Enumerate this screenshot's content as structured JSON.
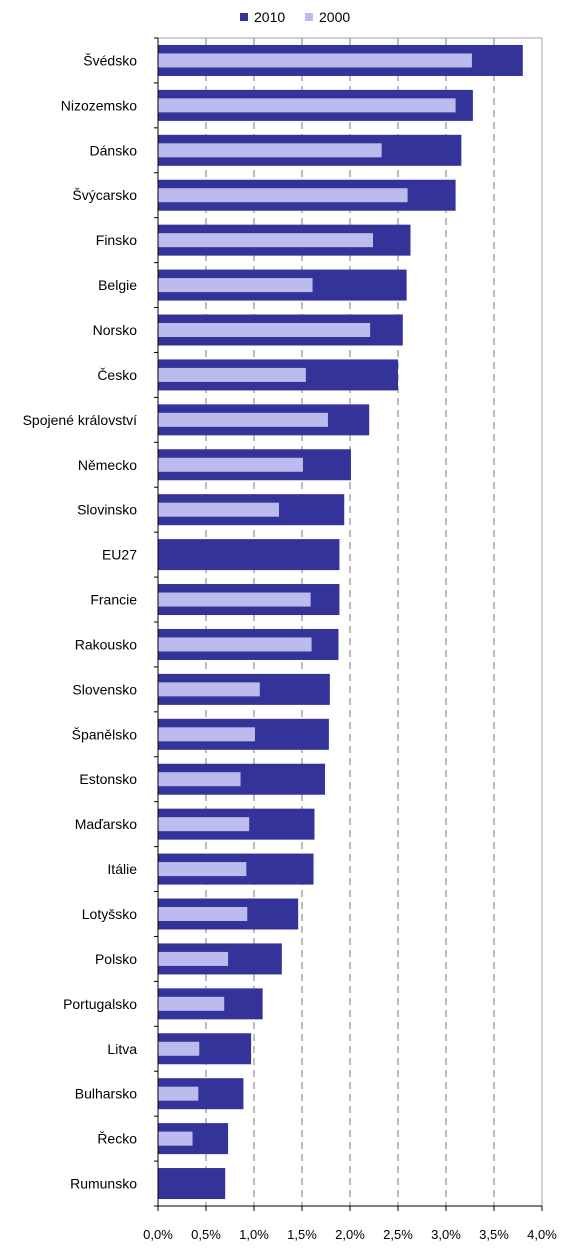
{
  "chart_data": {
    "type": "bar",
    "orientation": "horizontal",
    "categories": [
      "Švédsko",
      "Nizozemsko",
      "Dánsko",
      "Švýcarsko",
      "Finsko",
      "Belgie",
      "Norsko",
      "Česko",
      "Spojené království",
      "Německo",
      "Slovinsko",
      "EU27",
      "Francie",
      "Rakousko",
      "Slovensko",
      "Španělsko",
      "Estonsko",
      "Maďarsko",
      "Itálie",
      "Lotyšsko",
      "Polsko",
      "Portugalsko",
      "Litva",
      "Bulharsko",
      "Řecko",
      "Rumunsko"
    ],
    "series": [
      {
        "name": "2010",
        "color": "#333399",
        "values": [
          3.8,
          3.28,
          3.16,
          3.1,
          2.63,
          2.59,
          2.55,
          2.5,
          2.2,
          2.01,
          1.94,
          1.89,
          1.89,
          1.88,
          1.79,
          1.78,
          1.74,
          1.63,
          1.62,
          1.46,
          1.29,
          1.09,
          0.97,
          0.89,
          0.73,
          0.7
        ]
      },
      {
        "name": "2000",
        "color": "#bbbbee",
        "values": [
          3.27,
          3.1,
          2.33,
          2.6,
          2.24,
          1.61,
          2.21,
          1.54,
          1.77,
          1.51,
          1.26,
          null,
          1.59,
          1.6,
          1.06,
          1.01,
          0.86,
          0.95,
          0.92,
          0.93,
          0.73,
          0.69,
          0.43,
          0.42,
          0.36,
          null
        ]
      }
    ],
    "xlim": [
      0,
      4
    ],
    "xticks": [
      "0,0%",
      "0,5%",
      "1,0%",
      "1,5%",
      "2,0%",
      "2,5%",
      "3,0%",
      "3,5%",
      "4,0%"
    ],
    "grid": "vertical-dashed",
    "legend_position": "top"
  }
}
